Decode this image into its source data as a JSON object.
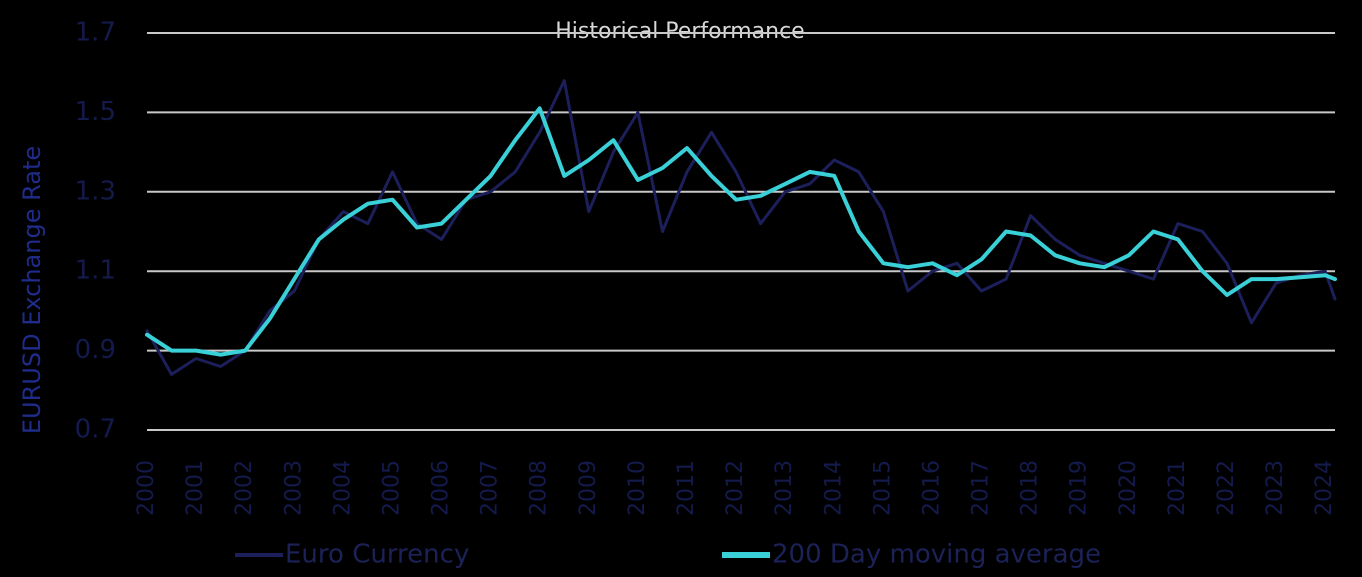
{
  "chart_data": {
    "type": "line",
    "title": "Historical Performance",
    "y_label": "EURUSD Exchange Rate",
    "x": [
      2000,
      2000.5,
      2001,
      2001.5,
      2002,
      2002.5,
      2003,
      2003.5,
      2004,
      2004.5,
      2005,
      2005.5,
      2006,
      2006.5,
      2007,
      2007.5,
      2008,
      2008.5,
      2009,
      2009.5,
      2010,
      2010.5,
      2011,
      2011.5,
      2012,
      2012.5,
      2013,
      2013.5,
      2014,
      2014.5,
      2015,
      2015.5,
      2016,
      2016.5,
      2017,
      2017.5,
      2018,
      2018.5,
      2019,
      2019.5,
      2020,
      2020.5,
      2021,
      2021.5,
      2022,
      2022.5,
      2023,
      2023.5,
      2024,
      2024.2
    ],
    "series": [
      {
        "name": "Euro Currency",
        "color": "#1c1f5a",
        "values": [
          0.95,
          0.84,
          0.88,
          0.86,
          0.9,
          1.0,
          1.05,
          1.18,
          1.25,
          1.22,
          1.35,
          1.22,
          1.18,
          1.28,
          1.3,
          1.35,
          1.45,
          1.58,
          1.25,
          1.4,
          1.5,
          1.2,
          1.35,
          1.45,
          1.35,
          1.22,
          1.3,
          1.32,
          1.38,
          1.35,
          1.25,
          1.05,
          1.1,
          1.12,
          1.05,
          1.08,
          1.24,
          1.18,
          1.14,
          1.12,
          1.1,
          1.08,
          1.22,
          1.2,
          1.12,
          0.97,
          1.07,
          1.09,
          1.1,
          1.03
        ]
      },
      {
        "name": "200 Day moving average",
        "color": "#3ad0d8",
        "values": [
          0.94,
          0.9,
          0.9,
          0.89,
          0.9,
          0.98,
          1.08,
          1.18,
          1.23,
          1.27,
          1.28,
          1.21,
          1.22,
          1.28,
          1.34,
          1.43,
          1.51,
          1.34,
          1.38,
          1.43,
          1.33,
          1.36,
          1.41,
          1.34,
          1.28,
          1.29,
          1.32,
          1.35,
          1.34,
          1.2,
          1.12,
          1.11,
          1.12,
          1.09,
          1.13,
          1.2,
          1.19,
          1.14,
          1.12,
          1.11,
          1.14,
          1.2,
          1.18,
          1.1,
          1.04,
          1.08,
          1.08,
          1.085,
          1.09,
          1.08
        ]
      }
    ],
    "xlim": [
      2000,
      2024.2
    ],
    "xticks": [
      2000,
      2001,
      2002,
      2003,
      2004,
      2005,
      2006,
      2007,
      2008,
      2009,
      2010,
      2011,
      2012,
      2013,
      2014,
      2015,
      2016,
      2017,
      2018,
      2019,
      2020,
      2021,
      2022,
      2023,
      2024
    ],
    "ylim": [
      0.7,
      1.7
    ],
    "yticks": [
      0.7,
      0.9,
      1.1,
      1.3,
      1.5,
      1.7
    ],
    "grid": true,
    "legend": "bottom"
  }
}
